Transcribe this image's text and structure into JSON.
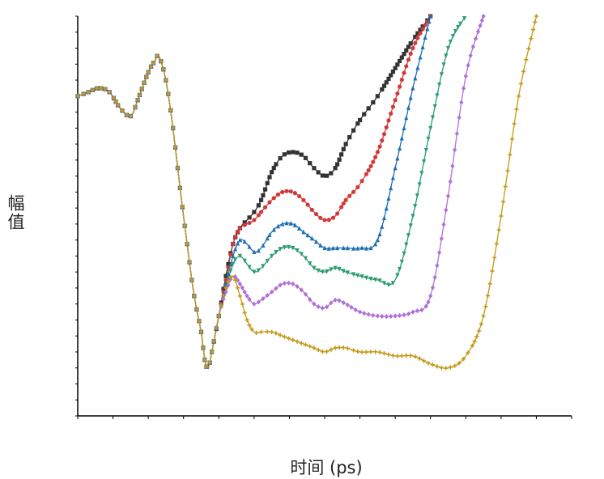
{
  "chart_data": {
    "type": "line",
    "title": "",
    "xlabel": "时间 (ps)",
    "ylabel": "幅值",
    "xlim": [
      0,
      140
    ],
    "ylim": [
      0,
      100
    ],
    "x_tick_labels": "none",
    "y_tick_labels": "none",
    "grid": false,
    "legend": "none",
    "series": [
      {
        "color": "#333333",
        "marker": "square",
        "points": [
          [
            0,
            80
          ],
          [
            3,
            81
          ],
          [
            6,
            82
          ],
          [
            9,
            81
          ],
          [
            12,
            77
          ],
          [
            15,
            75
          ],
          [
            17,
            79
          ],
          [
            20,
            86
          ],
          [
            22,
            89
          ],
          [
            23,
            90
          ],
          [
            25,
            84
          ],
          [
            27,
            72
          ],
          [
            29,
            57
          ],
          [
            31,
            43
          ],
          [
            33,
            30
          ],
          [
            35,
            21
          ],
          [
            36,
            14
          ],
          [
            37,
            12
          ],
          [
            38,
            16
          ],
          [
            40,
            25
          ],
          [
            42,
            35
          ],
          [
            44,
            43
          ],
          [
            46,
            47
          ],
          [
            48,
            49
          ],
          [
            50,
            51
          ],
          [
            52,
            54
          ],
          [
            55,
            61
          ],
          [
            58,
            65
          ],
          [
            61,
            66
          ],
          [
            64,
            65
          ],
          [
            67,
            62
          ],
          [
            70,
            60
          ],
          [
            73,
            62
          ],
          [
            76,
            68
          ],
          [
            80,
            74
          ],
          [
            85,
            80
          ],
          [
            90,
            87
          ],
          [
            95,
            94
          ],
          [
            100,
            100
          ]
        ]
      },
      {
        "color": "#d23a3a",
        "marker": "circle",
        "points": [
          [
            0,
            80
          ],
          [
            3,
            81
          ],
          [
            6,
            82
          ],
          [
            9,
            81
          ],
          [
            12,
            77
          ],
          [
            15,
            75
          ],
          [
            17,
            79
          ],
          [
            20,
            86
          ],
          [
            22,
            89
          ],
          [
            23,
            90
          ],
          [
            25,
            84
          ],
          [
            27,
            72
          ],
          [
            29,
            57
          ],
          [
            31,
            43
          ],
          [
            33,
            30
          ],
          [
            35,
            21
          ],
          [
            36,
            14
          ],
          [
            37,
            12
          ],
          [
            38,
            16
          ],
          [
            40,
            25
          ],
          [
            42,
            34
          ],
          [
            44,
            43
          ],
          [
            46,
            47
          ],
          [
            48,
            48
          ],
          [
            50,
            49
          ],
          [
            52,
            51
          ],
          [
            55,
            54
          ],
          [
            58,
            56
          ],
          [
            61,
            56
          ],
          [
            64,
            54
          ],
          [
            67,
            51
          ],
          [
            70,
            49
          ],
          [
            73,
            50
          ],
          [
            76,
            54
          ],
          [
            80,
            58
          ],
          [
            85,
            66
          ],
          [
            90,
            79
          ],
          [
            95,
            92
          ],
          [
            100,
            100
          ]
        ]
      },
      {
        "color": "#1f6fb5",
        "marker": "triangle-up",
        "points": [
          [
            0,
            80
          ],
          [
            3,
            81
          ],
          [
            6,
            82
          ],
          [
            9,
            81
          ],
          [
            12,
            77
          ],
          [
            15,
            75
          ],
          [
            17,
            79
          ],
          [
            20,
            86
          ],
          [
            22,
            89
          ],
          [
            23,
            90
          ],
          [
            25,
            84
          ],
          [
            27,
            72
          ],
          [
            29,
            57
          ],
          [
            31,
            43
          ],
          [
            33,
            30
          ],
          [
            35,
            21
          ],
          [
            36,
            14
          ],
          [
            37,
            12
          ],
          [
            38,
            16
          ],
          [
            40,
            25
          ],
          [
            42,
            33
          ],
          [
            44,
            40
          ],
          [
            46,
            44
          ],
          [
            48,
            43
          ],
          [
            50,
            41
          ],
          [
            52,
            42
          ],
          [
            55,
            46
          ],
          [
            58,
            48
          ],
          [
            61,
            48
          ],
          [
            64,
            46
          ],
          [
            67,
            44
          ],
          [
            70,
            42
          ],
          [
            73,
            42
          ],
          [
            76,
            42
          ],
          [
            80,
            42
          ],
          [
            85,
            44
          ],
          [
            90,
            62
          ],
          [
            95,
            82
          ],
          [
            100,
            100
          ]
        ]
      },
      {
        "color": "#2c9d6f",
        "marker": "triangle-down",
        "points": [
          [
            0,
            80
          ],
          [
            3,
            81
          ],
          [
            6,
            82
          ],
          [
            9,
            81
          ],
          [
            12,
            77
          ],
          [
            15,
            75
          ],
          [
            17,
            79
          ],
          [
            20,
            86
          ],
          [
            22,
            89
          ],
          [
            23,
            90
          ],
          [
            25,
            84
          ],
          [
            27,
            72
          ],
          [
            29,
            57
          ],
          [
            31,
            43
          ],
          [
            33,
            30
          ],
          [
            35,
            21
          ],
          [
            36,
            14
          ],
          [
            37,
            12
          ],
          [
            38,
            16
          ],
          [
            40,
            25
          ],
          [
            42,
            32
          ],
          [
            44,
            38
          ],
          [
            46,
            40
          ],
          [
            48,
            38
          ],
          [
            50,
            36
          ],
          [
            52,
            37
          ],
          [
            55,
            40
          ],
          [
            58,
            42
          ],
          [
            61,
            42
          ],
          [
            64,
            40
          ],
          [
            67,
            37
          ],
          [
            70,
            36
          ],
          [
            73,
            37
          ],
          [
            76,
            36
          ],
          [
            80,
            35
          ],
          [
            85,
            34
          ],
          [
            90,
            34
          ],
          [
            95,
            50
          ],
          [
            100,
            72
          ],
          [
            105,
            92
          ],
          [
            110,
            100
          ]
        ]
      },
      {
        "color": "#b070d8",
        "marker": "diamond",
        "points": [
          [
            0,
            80
          ],
          [
            3,
            81
          ],
          [
            6,
            82
          ],
          [
            9,
            81
          ],
          [
            12,
            77
          ],
          [
            15,
            75
          ],
          [
            17,
            79
          ],
          [
            20,
            86
          ],
          [
            22,
            89
          ],
          [
            23,
            90
          ],
          [
            25,
            84
          ],
          [
            27,
            72
          ],
          [
            29,
            57
          ],
          [
            31,
            43
          ],
          [
            33,
            30
          ],
          [
            35,
            21
          ],
          [
            36,
            14
          ],
          [
            37,
            12
          ],
          [
            38,
            16
          ],
          [
            40,
            25
          ],
          [
            42,
            31
          ],
          [
            44,
            35
          ],
          [
            46,
            33
          ],
          [
            48,
            30
          ],
          [
            50,
            28
          ],
          [
            52,
            29
          ],
          [
            55,
            31
          ],
          [
            58,
            33
          ],
          [
            61,
            33
          ],
          [
            64,
            31
          ],
          [
            67,
            28
          ],
          [
            70,
            27
          ],
          [
            73,
            29
          ],
          [
            76,
            28
          ],
          [
            80,
            26
          ],
          [
            85,
            25
          ],
          [
            90,
            25
          ],
          [
            95,
            26
          ],
          [
            100,
            30
          ],
          [
            105,
            55
          ],
          [
            110,
            85
          ],
          [
            115,
            100
          ]
        ]
      },
      {
        "color": "#c49a1a",
        "marker": "plus",
        "points": [
          [
            0,
            80
          ],
          [
            3,
            81
          ],
          [
            6,
            82
          ],
          [
            9,
            81
          ],
          [
            12,
            77
          ],
          [
            15,
            75
          ],
          [
            17,
            79
          ],
          [
            20,
            86
          ],
          [
            22,
            89
          ],
          [
            23,
            90
          ],
          [
            25,
            84
          ],
          [
            27,
            72
          ],
          [
            29,
            57
          ],
          [
            31,
            43
          ],
          [
            33,
            30
          ],
          [
            35,
            21
          ],
          [
            36,
            14
          ],
          [
            37,
            12
          ],
          [
            38,
            16
          ],
          [
            40,
            25
          ],
          [
            42,
            32
          ],
          [
            44,
            35
          ],
          [
            46,
            30
          ],
          [
            48,
            24
          ],
          [
            50,
            21
          ],
          [
            52,
            21
          ],
          [
            55,
            21
          ],
          [
            58,
            20
          ],
          [
            61,
            19
          ],
          [
            64,
            18
          ],
          [
            67,
            17
          ],
          [
            70,
            16
          ],
          [
            73,
            17
          ],
          [
            76,
            17
          ],
          [
            80,
            16
          ],
          [
            85,
            16
          ],
          [
            90,
            15
          ],
          [
            95,
            15
          ],
          [
            100,
            13
          ],
          [
            105,
            12
          ],
          [
            110,
            15
          ],
          [
            115,
            25
          ],
          [
            120,
            50
          ],
          [
            125,
            80
          ],
          [
            130,
            100
          ]
        ]
      }
    ]
  }
}
